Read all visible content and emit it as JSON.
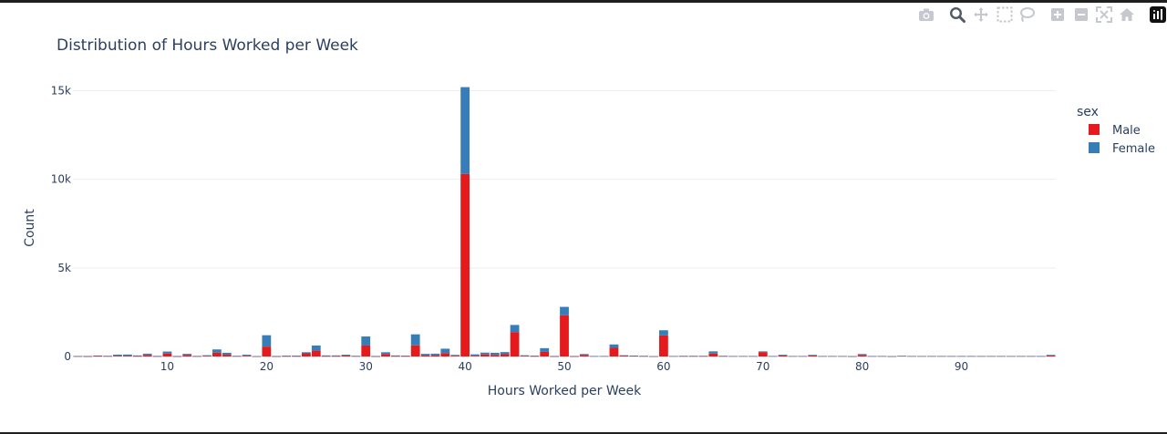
{
  "toolbar": {
    "icons": [
      "camera-icon",
      "zoom-icon",
      "pan-icon",
      "box-select-icon",
      "lasso-select-icon",
      "zoom-in-icon",
      "zoom-out-icon",
      "autoscale-icon",
      "reset-axes-icon",
      "plotly-logo-icon"
    ]
  },
  "chart_data": {
    "type": "bar",
    "barmode": "stack",
    "title": "Distribution of Hours Worked per Week",
    "xlabel": "Hours Worked per Week",
    "ylabel": "Count",
    "xlim": [
      0.5,
      99.5
    ],
    "ylim": [
      0,
      16000
    ],
    "x_ticks": [
      10,
      20,
      30,
      40,
      50,
      60,
      70,
      80,
      90
    ],
    "y_ticks": [
      0,
      5000,
      10000,
      15000
    ],
    "y_tick_labels": [
      "0",
      "5k",
      "10k",
      "15k"
    ],
    "grid": true,
    "legend_title": "sex",
    "legend_position": "right",
    "colors": {
      "Male": "#e41a1c",
      "Female": "#377eb8",
      "grid": "#ebeef3",
      "text": "#2a3f5f"
    },
    "x": [
      1,
      2,
      3,
      4,
      5,
      6,
      7,
      8,
      9,
      10,
      11,
      12,
      13,
      14,
      15,
      16,
      17,
      18,
      19,
      20,
      21,
      22,
      23,
      24,
      25,
      26,
      27,
      28,
      29,
      30,
      31,
      32,
      33,
      34,
      35,
      36,
      37,
      38,
      39,
      40,
      41,
      42,
      43,
      44,
      45,
      46,
      47,
      48,
      49,
      50,
      51,
      52,
      53,
      54,
      55,
      56,
      57,
      58,
      59,
      60,
      61,
      62,
      63,
      64,
      65,
      66,
      67,
      68,
      69,
      70,
      71,
      72,
      73,
      74,
      75,
      76,
      77,
      78,
      79,
      80,
      81,
      82,
      83,
      84,
      85,
      86,
      87,
      88,
      89,
      90,
      91,
      92,
      93,
      94,
      95,
      96,
      97,
      98,
      99
    ],
    "series": [
      {
        "name": "Male",
        "values": [
          15,
          10,
          25,
          20,
          35,
          30,
          20,
          90,
          15,
          170,
          10,
          90,
          15,
          30,
          220,
          100,
          20,
          40,
          10,
          560,
          10,
          20,
          20,
          180,
          330,
          20,
          20,
          50,
          20,
          620,
          10,
          140,
          20,
          20,
          630,
          70,
          70,
          190,
          40,
          10300,
          40,
          120,
          90,
          130,
          1380,
          30,
          20,
          260,
          10,
          2330,
          10,
          90,
          20,
          20,
          490,
          50,
          30,
          20,
          10,
          1190,
          20,
          20,
          20,
          20,
          170,
          20,
          20,
          20,
          20,
          250,
          20,
          60,
          20,
          20,
          50,
          20,
          20,
          20,
          10,
          90,
          20,
          20,
          10,
          30,
          20,
          20,
          20,
          20,
          20,
          20,
          20,
          20,
          20,
          20,
          20,
          20,
          20,
          20,
          50
        ]
      },
      {
        "name": "Female",
        "values": [
          15,
          20,
          30,
          20,
          70,
          80,
          40,
          70,
          20,
          110,
          20,
          60,
          20,
          40,
          180,
          110,
          20,
          60,
          10,
          640,
          20,
          30,
          30,
          60,
          290,
          40,
          40,
          50,
          20,
          510,
          20,
          100,
          40,
          30,
          620,
          80,
          90,
          250,
          50,
          4900,
          80,
          100,
          120,
          120,
          400,
          40,
          30,
          210,
          20,
          470,
          20,
          50,
          10,
          10,
          190,
          20,
          20,
          20,
          10,
          290,
          10,
          20,
          20,
          20,
          120,
          20,
          10,
          10,
          10,
          40,
          10,
          40,
          10,
          10,
          40,
          10,
          10,
          10,
          10,
          50,
          10,
          10,
          10,
          10,
          10,
          10,
          10,
          10,
          10,
          10,
          10,
          10,
          10,
          10,
          10,
          10,
          10,
          10,
          40
        ]
      }
    ]
  }
}
